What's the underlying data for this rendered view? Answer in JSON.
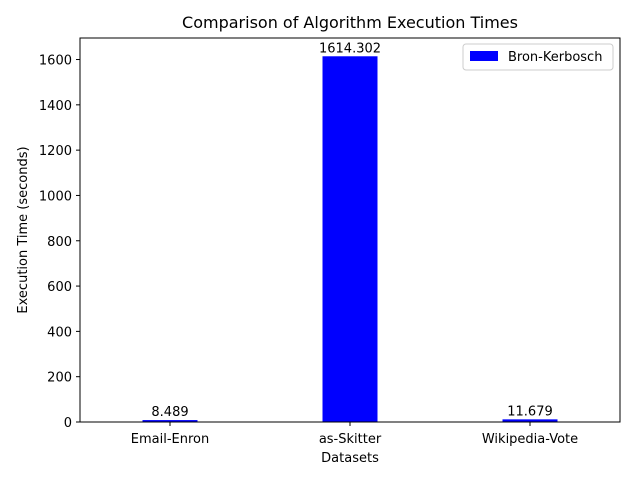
{
  "chart_data": {
    "type": "bar",
    "title": "Comparison of Algorithm Execution Times",
    "xlabel": "Datasets",
    "ylabel": "Execution Time (seconds)",
    "categories": [
      "Email-Enron",
      "as-Skitter",
      "Wikipedia-Vote"
    ],
    "series": [
      {
        "name": "Bron-Kerbosch",
        "color": "#0000ff",
        "values": [
          8.489,
          1614.302,
          11.679
        ],
        "value_labels": [
          "8.489",
          "1614.302",
          "11.679"
        ]
      }
    ],
    "ylim": [
      0,
      1695
    ],
    "yticks": [
      0,
      200,
      400,
      600,
      800,
      1000,
      1200,
      1400,
      1600
    ],
    "grid": false,
    "legend_position": "upper right"
  }
}
